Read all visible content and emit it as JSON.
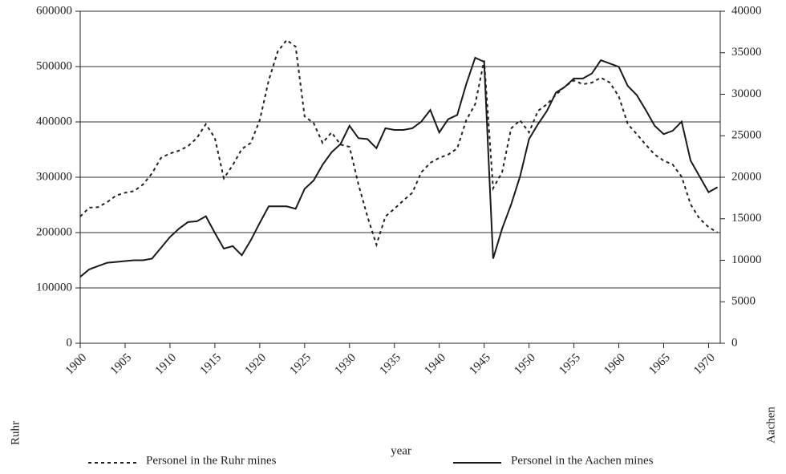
{
  "chart_data": {
    "type": "line",
    "xlabel": "year",
    "ylabel": "Ruhr",
    "y2label": "Aachen",
    "x": [
      1900,
      1901,
      1902,
      1903,
      1904,
      1905,
      1906,
      1907,
      1908,
      1909,
      1910,
      1911,
      1912,
      1913,
      1914,
      1915,
      1916,
      1917,
      1918,
      1919,
      1920,
      1921,
      1922,
      1923,
      1924,
      1925,
      1926,
      1927,
      1928,
      1929,
      1930,
      1931,
      1932,
      1933,
      1934,
      1935,
      1936,
      1937,
      1938,
      1939,
      1940,
      1941,
      1942,
      1943,
      1944,
      1945,
      1946,
      1947,
      1948,
      1949,
      1950,
      1951,
      1952,
      1953,
      1954,
      1955,
      1956,
      1957,
      1958,
      1959,
      1960,
      1961,
      1962,
      1963,
      1964,
      1965,
      1966,
      1967,
      1968,
      1969,
      1970,
      1971
    ],
    "xlim": [
      1900,
      1971.3
    ],
    "xticks": [
      1900,
      1905,
      1910,
      1915,
      1920,
      1925,
      1930,
      1935,
      1940,
      1945,
      1950,
      1955,
      1960,
      1965,
      1970
    ],
    "ylim": [
      0,
      600000
    ],
    "yticks": [
      0,
      100000,
      200000,
      300000,
      400000,
      500000,
      600000
    ],
    "y2lim": [
      0,
      40000
    ],
    "y2ticks": [
      0,
      5000,
      10000,
      15000,
      20000,
      25000,
      30000,
      35000,
      40000
    ],
    "grid": true,
    "legend": "bottom",
    "series": [
      {
        "name": "Personel in the Ruhr mines",
        "color": "#222222",
        "dash": "dashed",
        "axis": "y",
        "values": [
          229000,
          245000,
          246000,
          255000,
          267000,
          272000,
          275000,
          287000,
          307000,
          335000,
          343000,
          348000,
          356000,
          371000,
          396000,
          371000,
          298000,
          322000,
          351000,
          362000,
          403000,
          475000,
          527000,
          548000,
          536000,
          410000,
          398000,
          362000,
          381000,
          359000,
          355000,
          287000,
          229000,
          178000,
          229000,
          243000,
          258000,
          272000,
          309000,
          326000,
          335000,
          341000,
          352000,
          403000,
          432000,
          511000,
          280000,
          309000,
          388000,
          403000,
          381000,
          420000,
          432000,
          449000,
          464000,
          475000,
          468000,
          471000,
          480000,
          471000,
          446000,
          396000,
          378000,
          359000,
          341000,
          330000,
          323000,
          301000,
          251000,
          225000,
          210000,
          200000
        ]
      },
      {
        "name": "Personel in the Aachen mines",
        "color": "#1a1a1a",
        "dash": "solid",
        "axis": "y2",
        "values": [
          8000,
          8900,
          9300,
          9700,
          9800,
          9900,
          10000,
          10000,
          10200,
          11500,
          12800,
          13800,
          14600,
          14700,
          15300,
          13300,
          11400,
          11700,
          10600,
          12400,
          14500,
          16500,
          16500,
          16500,
          16200,
          18600,
          19600,
          21500,
          23000,
          24000,
          26200,
          24700,
          24600,
          23500,
          25900,
          25700,
          25700,
          25900,
          26700,
          28100,
          25400,
          27000,
          27500,
          31200,
          34400,
          33900,
          10200,
          13800,
          16700,
          20100,
          24600,
          26400,
          28000,
          30200,
          30900,
          31900,
          31900,
          32500,
          34100,
          33700,
          33300,
          31000,
          29900,
          28100,
          26200,
          25200,
          25600,
          26700,
          22000,
          20100,
          18200,
          18800
        ]
      }
    ]
  }
}
